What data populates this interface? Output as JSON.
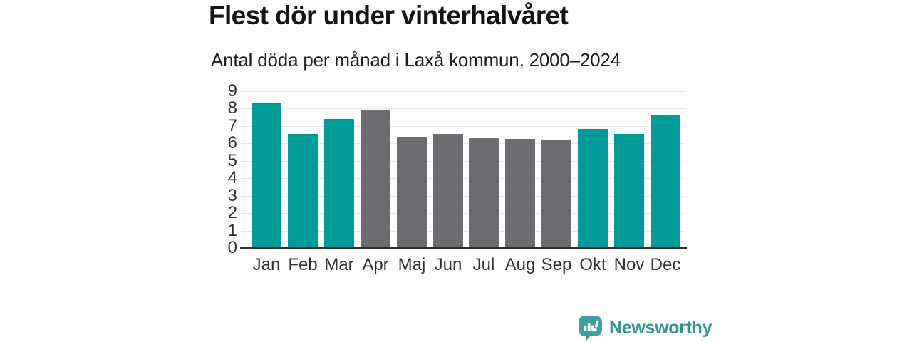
{
  "header": {
    "title": "Flest dör under vinterhalvåret",
    "subtitle": "Antal döda per månad i Laxå kommun, 2000–2024"
  },
  "chart_data": {
    "type": "bar",
    "title": "Flest dör under vinterhalvåret",
    "subtitle": "Antal döda per månad i Laxå kommun, 2000–2024",
    "categories": [
      "Jan",
      "Feb",
      "Mar",
      "Apr",
      "Maj",
      "Jun",
      "Jul",
      "Aug",
      "Sep",
      "Okt",
      "Nov",
      "Dec"
    ],
    "values": [
      8.35,
      6.55,
      7.4,
      7.9,
      6.4,
      6.55,
      6.3,
      6.25,
      6.2,
      6.85,
      6.55,
      7.65
    ],
    "bar_colors": [
      "teal",
      "teal",
      "teal",
      "gray",
      "gray",
      "gray",
      "gray",
      "gray",
      "gray",
      "teal",
      "teal",
      "teal"
    ],
    "colors": {
      "teal": "#009a99",
      "gray": "#6d6d71"
    },
    "xlabel": "",
    "ylabel": "",
    "ylim": [
      0,
      9
    ],
    "yticks": [
      0,
      1,
      2,
      3,
      4,
      5,
      6,
      7,
      8,
      9
    ],
    "grid": true,
    "legend": false,
    "axis_color": "#2d2d2d",
    "gridline_color": "#e8e8e9"
  },
  "footer": {
    "brand": "Newsworthy",
    "logo_icon": "bar-chart-speech-bubble-icon",
    "logo_icon_color": "#41a09a",
    "logo_text_color": "#349490"
  }
}
